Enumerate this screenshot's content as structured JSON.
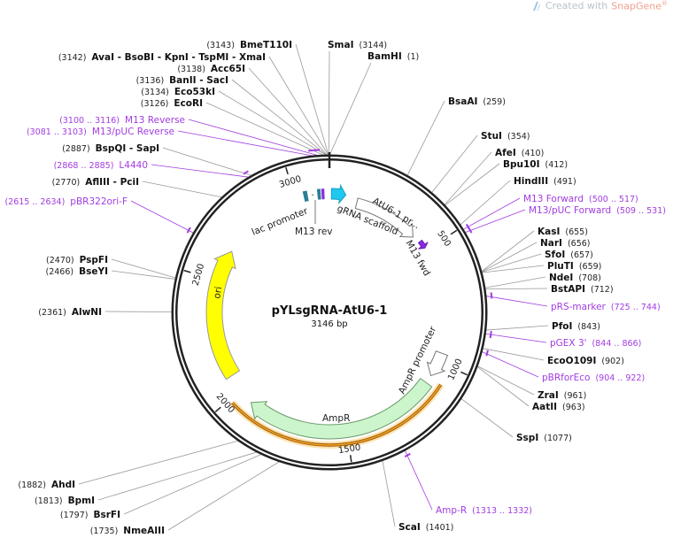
{
  "credit": {
    "prefix": "Created with",
    "brand": "SnapGene",
    "mark": "®",
    "icon": "snapgene-logo-icon"
  },
  "plasmid": {
    "name": "pYLsgRNA-AtU6-1",
    "length": "3146 bp",
    "total_bp": 3146
  },
  "ticks": [
    "500",
    "1000",
    "1500",
    "2000",
    "2500",
    "3000"
  ],
  "colors": {
    "enzyme_line": "#999999",
    "primer": "#a23ce0",
    "ori": "#ffff00",
    "ampr": "#ccf5cc",
    "grna": "#1ec8f0",
    "lac": "#2a7f96",
    "orange_bar": "#f0a020"
  },
  "enzymes": [
    {
      "name": "BmeT110I",
      "pos": "(3143)",
      "bp": 3143
    },
    {
      "name": "AvaI  - BsoBI  - KpnI  - TspMI  - XmaI",
      "pos": "(3142)",
      "bp": 3142
    },
    {
      "name": "Acc65I",
      "pos": "(3138)",
      "bp": 3138
    },
    {
      "name": "BanII  - SacI",
      "pos": "(3136)",
      "bp": 3136
    },
    {
      "name": "Eco53kI",
      "pos": "(3134)",
      "bp": 3134
    },
    {
      "name": "EcoRI",
      "pos": "(3126)",
      "bp": 3126
    },
    {
      "name": "BspQI  - SapI",
      "pos": "(2887)",
      "bp": 2887
    },
    {
      "name": "AflIII  - PciI",
      "pos": "(2770)",
      "bp": 2770
    },
    {
      "name": "PspFI",
      "pos": "(2470)",
      "bp": 2470
    },
    {
      "name": "BseYI",
      "pos": "(2466)",
      "bp": 2466
    },
    {
      "name": "AlwNI",
      "pos": "(2361)",
      "bp": 2361
    },
    {
      "name": "AhdI",
      "pos": "(1882)",
      "bp": 1882
    },
    {
      "name": "BpmI",
      "pos": "(1813)",
      "bp": 1813
    },
    {
      "name": "BsrFI",
      "pos": "(1797)",
      "bp": 1797
    },
    {
      "name": "NmeAIII",
      "pos": "(1735)",
      "bp": 1735
    },
    {
      "name": "SmaI",
      "pos": "(3144)",
      "bp": 3144
    },
    {
      "name": "BamHI",
      "pos": "(1)",
      "bp": 1
    },
    {
      "name": "BsaAI",
      "pos": "(259)",
      "bp": 259
    },
    {
      "name": "StuI",
      "pos": "(354)",
      "bp": 354
    },
    {
      "name": "AfeI",
      "pos": "(410)",
      "bp": 410
    },
    {
      "name": "Bpu10I",
      "pos": "(412)",
      "bp": 412
    },
    {
      "name": "HindIII",
      "pos": "(491)",
      "bp": 491
    },
    {
      "name": "KasI",
      "pos": "(655)",
      "bp": 655
    },
    {
      "name": "NarI",
      "pos": "(656)",
      "bp": 656
    },
    {
      "name": "SfoI",
      "pos": "(657)",
      "bp": 657
    },
    {
      "name": "PluTI",
      "pos": "(659)",
      "bp": 659
    },
    {
      "name": "NdeI",
      "pos": "(708)",
      "bp": 708
    },
    {
      "name": "BstAPI",
      "pos": "(712)",
      "bp": 712
    },
    {
      "name": "PfoI",
      "pos": "(843)",
      "bp": 843
    },
    {
      "name": "EcoO109I",
      "pos": "(902)",
      "bp": 902
    },
    {
      "name": "ZraI",
      "pos": "(961)",
      "bp": 961
    },
    {
      "name": "AatII",
      "pos": "(963)",
      "bp": 963
    },
    {
      "name": "SspI",
      "pos": "(1077)",
      "bp": 1077
    },
    {
      "name": "ScaI",
      "pos": "(1401)",
      "bp": 1401
    }
  ],
  "primers": [
    {
      "name": "M13 Reverse",
      "range": "(3100 .. 3116)",
      "start": 3100,
      "end": 3116
    },
    {
      "name": "M13/pUC Reverse",
      "range": "(3081 .. 3103)",
      "start": 3081,
      "end": 3103
    },
    {
      "name": "L4440",
      "range": "(2868 .. 2885)",
      "start": 2868,
      "end": 2885
    },
    {
      "name": "pBR322ori-F",
      "range": "(2615 .. 2634)",
      "start": 2615,
      "end": 2634
    },
    {
      "name": "M13 Forward",
      "range": "(500 .. 517)",
      "start": 500,
      "end": 517
    },
    {
      "name": "M13/pUC Forward",
      "range": "(509 .. 531)",
      "start": 509,
      "end": 531
    },
    {
      "name": "pRS-marker",
      "range": "(725 .. 744)",
      "start": 725,
      "end": 744
    },
    {
      "name": "pGEX 3'",
      "range": "(844 .. 866)",
      "start": 844,
      "end": 866
    },
    {
      "name": "pBRforEco",
      "range": "(904 .. 922)",
      "start": 904,
      "end": 922
    },
    {
      "name": "Amp-R",
      "range": "(1313 .. 1332)",
      "start": 1313,
      "end": 1332
    }
  ],
  "features": {
    "ori": "ori",
    "ampr": "AmpR",
    "ampr_promoter": "AmpR promoter",
    "lac_promoter": "lac promoter",
    "m13_rev": "M13 rev",
    "grna_scaffold": "gRNA scaffold",
    "atu6_promoter": "AtU6-1 pr...",
    "m13_fwd": "M13 fwd"
  }
}
